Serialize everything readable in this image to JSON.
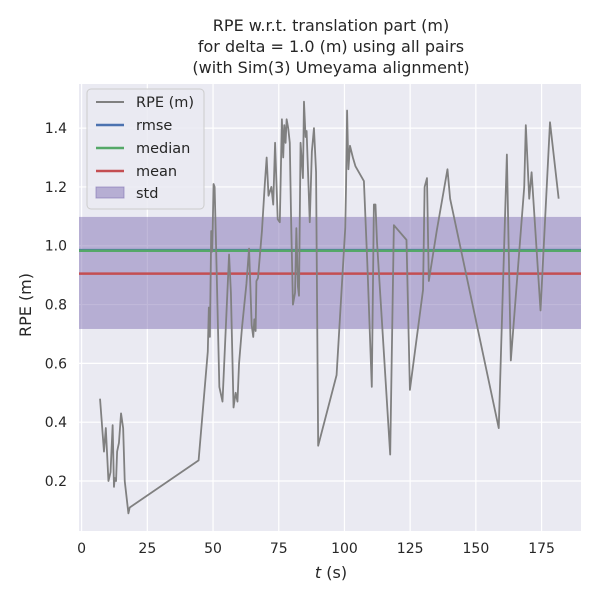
{
  "chart_data": {
    "type": "line",
    "title_lines": [
      "RPE w.r.t. translation part (m)",
      "for delta = 1.0 (m) using all pairs",
      "(with Sim(3) Umeyama alignment)"
    ],
    "xlabel_var": "t",
    "xlabel_unit": " (s)",
    "ylabel": "RPE (m)",
    "xlim": [
      -1,
      190
    ],
    "ylim": [
      0.03,
      1.55
    ],
    "x_ticks": [
      0,
      25,
      50,
      75,
      100,
      125,
      150,
      175
    ],
    "y_ticks": [
      0.2,
      0.4,
      0.6,
      0.8,
      1.0,
      1.2,
      1.4
    ],
    "x_tick_labels": [
      "0",
      "25",
      "50",
      "75",
      "100",
      "125",
      "150",
      "175"
    ],
    "y_tick_labels": [
      "0.2",
      "0.4",
      "0.6",
      "0.8",
      "1.0",
      "1.2",
      "1.4"
    ],
    "grid": true,
    "legend_position": "top-left",
    "series": [
      {
        "name": "RPE (m)",
        "color": "#808080",
        "x": [
          7,
          8.5,
          9.2,
          10.2,
          11,
          11.8,
          12.3,
          12.6,
          13.1,
          13.5,
          14.2,
          15,
          15.8,
          16.4,
          17.8,
          18.3,
          44.5,
          48,
          48.4,
          48.8,
          49.3,
          49.7,
          50.2,
          50.6,
          51.2,
          52.4,
          53.6,
          54.6,
          56.1,
          56.8,
          57.8,
          58.6,
          59.3,
          59.9,
          61,
          62.7,
          63.7,
          64.7,
          65.3,
          65.7,
          66.2,
          66.5,
          67.1,
          68.6,
          69.7,
          70.4,
          71.1,
          72.2,
          72.9,
          73.6,
          74.6,
          75.4,
          76.2,
          76.7,
          77.1,
          77.6,
          78,
          78.6,
          79.2,
          79.7,
          80.4,
          81.2,
          81.7,
          82.3,
          82.7,
          83.3,
          84.2,
          84.6,
          85.2,
          85.6,
          86.3,
          86.8,
          87.6,
          88.4,
          89.2,
          90,
          97,
          100.3,
          100.6,
          101,
          101.5,
          102.1,
          103.2,
          104.2,
          107.4,
          108.7,
          110.4,
          111.2,
          111.8,
          112.4,
          117.4,
          118.8,
          123.6,
          124.9,
          129.9,
          130.5,
          131.4,
          132.1,
          135.1,
          139.2,
          140.2,
          158.7,
          161.8,
          163.3,
          168.4,
          169,
          170.3,
          171.2,
          174.6,
          178.2,
          181.5
        ],
        "y": [
          0.48,
          0.3,
          0.38,
          0.2,
          0.23,
          0.39,
          0.18,
          0.21,
          0.2,
          0.3,
          0.33,
          0.43,
          0.38,
          0.2,
          0.09,
          0.11,
          0.27,
          0.64,
          0.79,
          0.69,
          1.05,
          0.98,
          1.21,
          1.2,
          0.98,
          0.52,
          0.47,
          0.67,
          0.97,
          0.84,
          0.45,
          0.5,
          0.47,
          0.6,
          0.72,
          0.87,
          0.99,
          0.73,
          0.69,
          0.75,
          0.71,
          0.88,
          0.89,
          1.05,
          1.21,
          1.3,
          1.17,
          1.2,
          1.14,
          1.35,
          1.09,
          1.08,
          1.43,
          1.3,
          1.41,
          1.35,
          1.43,
          1.4,
          1.35,
          1.09,
          0.8,
          0.84,
          1.06,
          0.86,
          0.83,
          1.35,
          1.23,
          1.49,
          1.37,
          1.39,
          1.21,
          1.08,
          1.32,
          1.4,
          1.25,
          0.32,
          0.56,
          1.06,
          1.2,
          1.46,
          1.26,
          1.34,
          1.3,
          1.27,
          1.22,
          0.94,
          0.52,
          1.14,
          1.14,
          1.01,
          0.29,
          1.07,
          1.02,
          0.51,
          0.85,
          1.2,
          1.23,
          0.88,
          1.05,
          1.26,
          1.16,
          0.38,
          1.31,
          0.61,
          1.2,
          1.41,
          1.16,
          1.25,
          0.78,
          1.42,
          1.16
        ]
      },
      {
        "name": "rmse",
        "color": "#4c72b0",
        "value": 0.985
      },
      {
        "name": "median",
        "color": "#55a868",
        "value": 0.983
      },
      {
        "name": "mean",
        "color": "#c44e52",
        "value": 0.905
      },
      {
        "name": "std",
        "color": "#8172b3",
        "band": [
          0.717,
          1.098
        ]
      }
    ]
  },
  "colors": {
    "axes_bg": "#eaeaf2",
    "grid": "#ffffff",
    "legend_bg": "#eaeaf2"
  }
}
